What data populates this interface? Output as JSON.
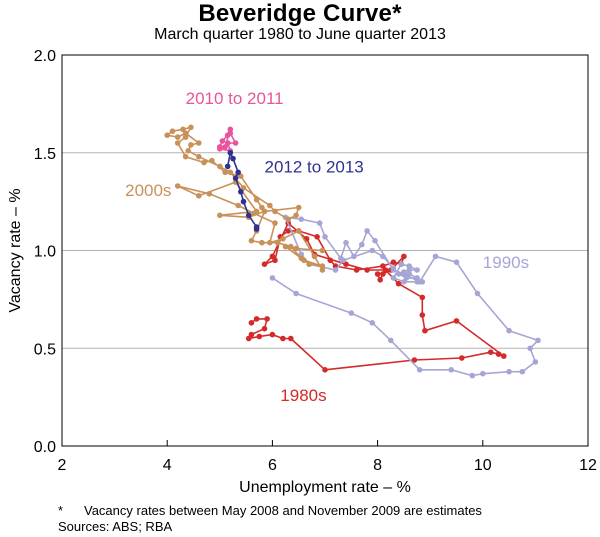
{
  "chart_data": {
    "type": "line",
    "title": "Beveridge Curve*",
    "subtitle": "March quarter 1980 to June quarter 2013",
    "xlabel": "Unemployment rate – %",
    "ylabel": "Vacancy rate – %",
    "xlim": [
      2,
      12
    ],
    "ylim": [
      0,
      2
    ],
    "xticks": [
      "2",
      "4",
      "6",
      "8",
      "10",
      "12"
    ],
    "yticks": [
      "0.0",
      "0.5",
      "1.0",
      "1.5",
      "2.0"
    ],
    "grid": true,
    "series": [
      {
        "name": "1980s",
        "color": "#d42a2a",
        "points": [
          [
            5.6,
            0.63
          ],
          [
            5.7,
            0.65
          ],
          [
            5.9,
            0.65
          ],
          [
            5.85,
            0.6
          ],
          [
            5.6,
            0.57
          ],
          [
            5.55,
            0.55
          ],
          [
            5.75,
            0.56
          ],
          [
            6.0,
            0.57
          ],
          [
            6.2,
            0.55
          ],
          [
            6.35,
            0.55
          ],
          [
            7.0,
            0.39
          ],
          [
            8.7,
            0.44
          ],
          [
            9.6,
            0.45
          ],
          [
            10.15,
            0.48
          ],
          [
            10.3,
            0.47
          ],
          [
            10.4,
            0.46
          ],
          [
            9.5,
            0.64
          ],
          [
            8.9,
            0.59
          ],
          [
            8.85,
            0.67
          ],
          [
            8.85,
            0.76
          ],
          [
            8.4,
            0.83
          ],
          [
            8.15,
            0.9
          ],
          [
            7.8,
            0.9
          ],
          [
            7.4,
            0.93
          ],
          [
            6.8,
            0.98
          ],
          [
            6.65,
            1.06
          ],
          [
            6.3,
            1.14
          ],
          [
            6.0,
            0.97
          ],
          [
            5.85,
            0.93
          ],
          [
            6.05,
            0.95
          ],
          [
            6.15,
            1.07
          ],
          [
            6.3,
            1.1
          ],
          [
            6.5,
            1.1
          ],
          [
            6.85,
            1.07
          ],
          [
            7.1,
            0.95
          ],
          [
            7.2,
            0.92
          ],
          [
            7.6,
            0.9
          ],
          [
            8.1,
            0.92
          ],
          [
            8.3,
            0.94
          ],
          [
            8.45,
            0.93
          ],
          [
            8.5,
            0.97
          ],
          [
            8.25,
            0.9
          ],
          [
            8.1,
            0.88
          ],
          [
            8.05,
            0.85
          ],
          [
            8.0,
            0.88
          ]
        ]
      },
      {
        "name": "1990s",
        "color": "#a6a6d6",
        "points": [
          [
            6.0,
            0.86
          ],
          [
            6.45,
            0.78
          ],
          [
            7.5,
            0.68
          ],
          [
            7.9,
            0.63
          ],
          [
            8.25,
            0.54
          ],
          [
            8.8,
            0.39
          ],
          [
            9.4,
            0.39
          ],
          [
            9.8,
            0.36
          ],
          [
            10.0,
            0.37
          ],
          [
            10.5,
            0.38
          ],
          [
            10.75,
            0.38
          ],
          [
            11.0,
            0.43
          ],
          [
            10.9,
            0.5
          ],
          [
            11.05,
            0.54
          ],
          [
            10.5,
            0.59
          ],
          [
            9.9,
            0.78
          ],
          [
            9.5,
            0.94
          ],
          [
            9.1,
            0.97
          ],
          [
            8.8,
            0.84
          ],
          [
            8.5,
            0.88
          ],
          [
            8.3,
            0.9
          ],
          [
            7.95,
            1.05
          ],
          [
            7.8,
            1.1
          ],
          [
            7.7,
            1.03
          ],
          [
            7.55,
            0.97
          ],
          [
            7.4,
            1.04
          ],
          [
            7.3,
            0.96
          ],
          [
            7.0,
            1.07
          ],
          [
            6.9,
            1.14
          ],
          [
            6.55,
            1.16
          ],
          [
            6.25,
            1.17
          ],
          [
            6.55,
            0.98
          ],
          [
            6.7,
            0.93
          ],
          [
            7.2,
            0.9
          ],
          [
            7.35,
            0.95
          ],
          [
            7.9,
            1.0
          ],
          [
            8.1,
            0.97
          ],
          [
            8.3,
            0.91
          ],
          [
            8.4,
            0.88
          ],
          [
            8.55,
            0.86
          ],
          [
            8.75,
            0.86
          ],
          [
            8.6,
            0.88
          ],
          [
            8.5,
            0.89
          ],
          [
            8.6,
            0.9
          ],
          [
            8.75,
            0.9
          ],
          [
            8.6,
            0.92
          ],
          [
            8.45,
            0.93
          ],
          [
            8.3,
            0.86
          ],
          [
            8.5,
            0.84
          ],
          [
            8.75,
            0.84
          ],
          [
            8.85,
            0.84
          ]
        ]
      },
      {
        "name": "2000s",
        "color": "#c8915a",
        "points": [
          [
            6.95,
            0.9
          ],
          [
            6.8,
            0.97
          ],
          [
            6.5,
            1.1
          ],
          [
            6.2,
            1.06
          ],
          [
            5.95,
            1.04
          ],
          [
            6.05,
            1.14
          ],
          [
            5.65,
            1.19
          ],
          [
            5.35,
            1.23
          ],
          [
            4.8,
            1.29
          ],
          [
            4.2,
            1.33
          ],
          [
            4.6,
            1.28
          ],
          [
            5.3,
            1.35
          ],
          [
            5.7,
            1.2
          ],
          [
            5.0,
            1.18
          ],
          [
            5.55,
            1.17
          ],
          [
            5.85,
            1.2
          ],
          [
            6.5,
            1.22
          ],
          [
            6.45,
            1.18
          ],
          [
            6.3,
            1.16
          ],
          [
            6.05,
            1.2
          ],
          [
            5.95,
            1.23
          ],
          [
            5.45,
            1.32
          ],
          [
            5.2,
            1.4
          ],
          [
            5.0,
            1.43
          ],
          [
            4.6,
            1.48
          ],
          [
            4.4,
            1.51
          ],
          [
            4.45,
            1.54
          ],
          [
            4.6,
            1.55
          ],
          [
            4.35,
            1.6
          ],
          [
            4.2,
            1.58
          ],
          [
            4.0,
            1.59
          ],
          [
            4.1,
            1.61
          ],
          [
            4.3,
            1.62
          ],
          [
            4.45,
            1.63
          ],
          [
            4.35,
            1.58
          ],
          [
            4.2,
            1.55
          ],
          [
            4.35,
            1.48
          ],
          [
            4.7,
            1.45
          ],
          [
            4.85,
            1.46
          ],
          [
            5.1,
            1.4
          ],
          [
            5.4,
            1.38
          ],
          [
            5.7,
            1.26
          ],
          [
            5.8,
            1.22
          ],
          [
            5.85,
            1.2
          ],
          [
            5.7,
            1.1
          ],
          [
            5.6,
            1.05
          ],
          [
            5.8,
            1.04
          ],
          [
            6.1,
            1.04
          ],
          [
            6.35,
            1.02
          ],
          [
            6.55,
            0.96
          ],
          [
            6.7,
            0.93
          ],
          [
            6.95,
            0.92
          ],
          [
            6.6,
            0.95
          ],
          [
            6.25,
            1.02
          ],
          [
            6.45,
            1.01
          ],
          [
            6.95,
            1.0
          ]
        ]
      },
      {
        "name": "2010 to 2011",
        "color": "#e8559d",
        "points": [
          [
            5.0,
            1.52
          ],
          [
            5.2,
            1.51
          ],
          [
            5.15,
            1.55
          ],
          [
            5.3,
            1.55
          ],
          [
            5.2,
            1.6
          ],
          [
            5.15,
            1.59
          ],
          [
            5.05,
            1.56
          ],
          [
            5.0,
            1.53
          ],
          [
            5.1,
            1.53
          ],
          [
            5.2,
            1.62
          ]
        ]
      },
      {
        "name": "2012 to 2013",
        "color": "#2e3192",
        "points": [
          [
            5.15,
            1.43
          ],
          [
            5.2,
            1.5
          ],
          [
            5.25,
            1.47
          ],
          [
            5.35,
            1.4
          ],
          [
            5.3,
            1.37
          ],
          [
            5.4,
            1.3
          ],
          [
            5.45,
            1.25
          ],
          [
            5.55,
            1.18
          ],
          [
            5.7,
            1.12
          ],
          [
            5.7,
            1.11
          ]
        ]
      }
    ],
    "annotations": [
      {
        "text": "1980s",
        "x": 6.15,
        "y": 0.23
      },
      {
        "text": "1990s",
        "x": 10.0,
        "y": 0.91
      },
      {
        "text": "2000s",
        "x": 3.2,
        "y": 1.28
      },
      {
        "text": "2010 to 2011",
        "x": 4.35,
        "y": 1.75
      },
      {
        "text": "2012 to 2013",
        "x": 5.85,
        "y": 1.4
      }
    ]
  },
  "footnotes": {
    "star": "*",
    "note": "Vacancy rates between May 2008 and November 2009 are estimates",
    "sources": "Sources: ABS; RBA"
  }
}
